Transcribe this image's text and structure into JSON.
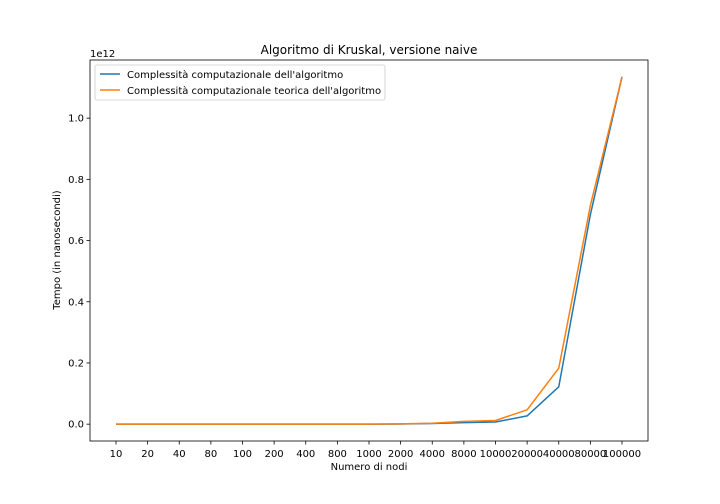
{
  "chart_data": {
    "type": "line",
    "title": "Algoritmo di Kruskal, versione naive",
    "xlabel": "Numero di nodi",
    "ylabel": "Tempo (in nanosecondi)",
    "y_offset_label": "1e12",
    "categories": [
      "10",
      "20",
      "40",
      "80",
      "100",
      "200",
      "400",
      "800",
      "1000",
      "2000",
      "4000",
      "8000",
      "10000",
      "20000",
      "40000",
      "80000",
      "100000"
    ],
    "x_scale": "categorical",
    "y_unit_multiplier": 1000000000000.0,
    "ylim": [
      -0.055,
      1.19
    ],
    "yticks": [
      0.0,
      0.2,
      0.4,
      0.6,
      0.8,
      1.0
    ],
    "ytick_labels": [
      "0.0",
      "0.2",
      "0.4",
      "0.6",
      "0.8",
      "1.0"
    ],
    "grid": false,
    "legend_position": "top-left",
    "series": [
      {
        "name": "Complessità computazionale dell'algoritmo",
        "color": "#1f77b4",
        "values": [
          0.0,
          0.0,
          0.0,
          0.0,
          0.0,
          0.0,
          0.0,
          0.0,
          0.0,
          0.0005,
          0.002,
          0.005,
          0.007,
          0.027,
          0.122,
          0.685,
          1.135
        ]
      },
      {
        "name": "Complessità computazionale teorica dell'algoritmo",
        "color": "#ff7f0e",
        "values": [
          0.0,
          0.0,
          0.0,
          0.0,
          0.0,
          0.0,
          0.0,
          0.0,
          0.0,
          0.001,
          0.003,
          0.009,
          0.012,
          0.047,
          0.183,
          0.715,
          1.135
        ]
      }
    ]
  }
}
